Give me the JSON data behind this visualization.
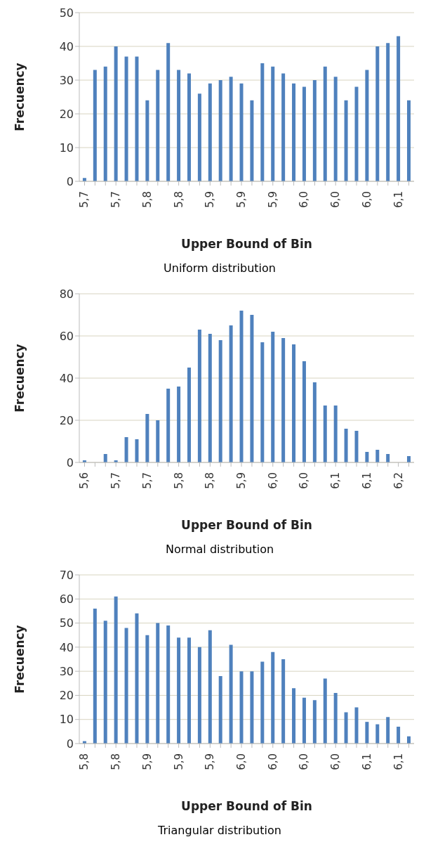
{
  "chart_data": [
    {
      "type": "bar",
      "title": "Uniform distribution",
      "xlabel": "Upper Bound of Bin",
      "ylabel": "Frecuency",
      "categories": [
        "5,7",
        null,
        null,
        "5,7",
        null,
        null,
        "5,8",
        null,
        null,
        "5,8",
        null,
        null,
        "5,9",
        null,
        null,
        "5,9",
        null,
        null,
        "5,9",
        null,
        null,
        "6,0",
        null,
        null,
        "6,0",
        null,
        null,
        "6,0",
        null,
        null,
        "6,1",
        null
      ],
      "values": [
        1,
        33,
        34,
        40,
        37,
        37,
        24,
        33,
        41,
        33,
        32,
        26,
        29,
        30,
        31,
        29,
        24,
        35,
        34,
        32,
        29,
        28,
        30,
        34,
        31,
        24,
        28,
        33,
        40,
        41,
        43,
        24
      ],
      "color": "#4f81bd",
      "ylim": [
        0,
        50
      ],
      "yticks": [
        0,
        10,
        20,
        30,
        40,
        50
      ],
      "grid": "y",
      "legend": false
    },
    {
      "type": "bar",
      "title": "Normal distribution",
      "xlabel": "Upper Bound of Bin",
      "ylabel": "Frecuency",
      "categories": [
        "5,6",
        null,
        null,
        "5,7",
        null,
        null,
        "5,7",
        null,
        null,
        "5,8",
        null,
        null,
        "5,8",
        null,
        null,
        "5,9",
        null,
        null,
        "6,0",
        null,
        null,
        "6,0",
        null,
        null,
        "6,1",
        null,
        null,
        "6,1",
        null,
        null,
        "6,2",
        null
      ],
      "values": [
        1,
        0,
        4,
        1,
        12,
        11,
        23,
        20,
        35,
        36,
        45,
        63,
        61,
        58,
        65,
        72,
        70,
        57,
        62,
        59,
        56,
        48,
        38,
        27,
        27,
        16,
        15,
        5,
        6,
        4,
        0,
        3
      ],
      "color": "#4f81bd",
      "ylim": [
        0,
        80
      ],
      "yticks": [
        0,
        20,
        40,
        60,
        80
      ],
      "grid": "y",
      "legend": false
    },
    {
      "type": "bar",
      "title": "Triangular distribution",
      "xlabel": "Upper Bound of Bin",
      "ylabel": "Frecuency",
      "categories": [
        "5,8",
        null,
        null,
        "5,8",
        null,
        null,
        "5,9",
        null,
        null,
        "5,9",
        null,
        null,
        "5,9",
        null,
        null,
        "6,0",
        null,
        null,
        "6,0",
        null,
        null,
        "6,0",
        null,
        null,
        "6,0",
        null,
        null,
        "6,1",
        null,
        null,
        "6,1",
        null
      ],
      "values": [
        1,
        56,
        51,
        61,
        48,
        54,
        45,
        50,
        49,
        44,
        44,
        40,
        47,
        28,
        41,
        30,
        30,
        34,
        38,
        35,
        23,
        19,
        18,
        27,
        21,
        13,
        15,
        9,
        8,
        11,
        7,
        3
      ],
      "color": "#4f81bd",
      "ylim": [
        0,
        70
      ],
      "yticks": [
        0,
        10,
        20,
        30,
        40,
        50,
        60,
        70
      ],
      "grid": "y",
      "legend": false
    }
  ]
}
